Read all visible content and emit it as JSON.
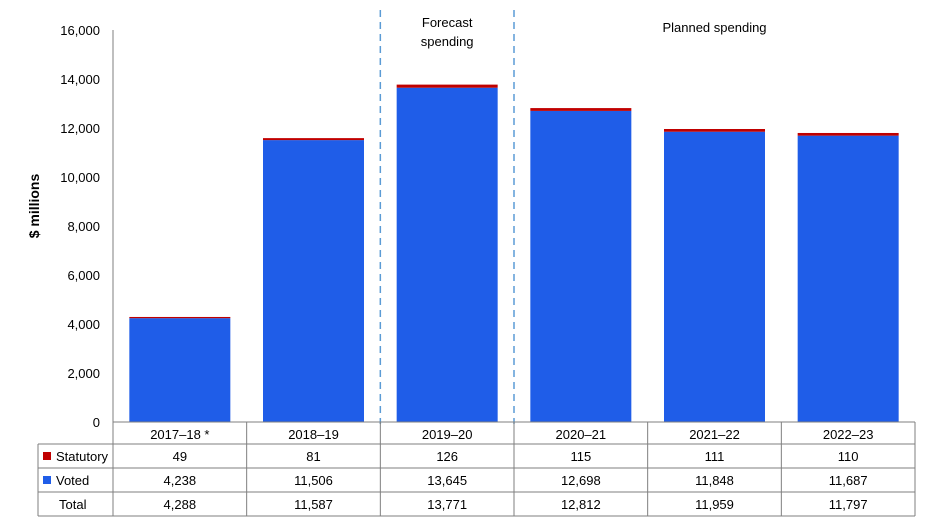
{
  "chart_data": {
    "type": "bar",
    "stacked": true,
    "ylabel": "$ millions",
    "ylim": [
      0,
      16000
    ],
    "yticks": [
      "0",
      "2,000",
      "4,000",
      "6,000",
      "8,000",
      "10,000",
      "12,000",
      "14,000",
      "16,000"
    ],
    "categories": [
      "2017–18 *",
      "2018–19",
      "2019–20",
      "2020–21",
      "2021–22",
      "2022–23"
    ],
    "series": [
      {
        "name": "Statutory",
        "color": "#c00000",
        "values": [
          49,
          81,
          126,
          115,
          111,
          110
        ],
        "labels": [
          "49",
          "81",
          "126",
          "115",
          "111",
          "110"
        ]
      },
      {
        "name": "Voted",
        "color": "#1f5de8",
        "values": [
          4238,
          11506,
          13645,
          12698,
          11848,
          11687
        ],
        "labels": [
          "4,238",
          "11,506",
          "13,645",
          "12,698",
          "11,848",
          "11,687"
        ]
      }
    ],
    "totals": {
      "name": "Total",
      "values": [
        4288,
        11587,
        13771,
        12812,
        11959,
        11797
      ],
      "labels": [
        "4,288",
        "11,587",
        "13,771",
        "12,812",
        "11,959",
        "11,797"
      ]
    },
    "annotations": [
      {
        "lines": [
          "Forecast",
          "spending"
        ]
      },
      {
        "lines": [
          "Planned spending"
        ]
      }
    ],
    "grid": false,
    "legend": "data-table"
  }
}
